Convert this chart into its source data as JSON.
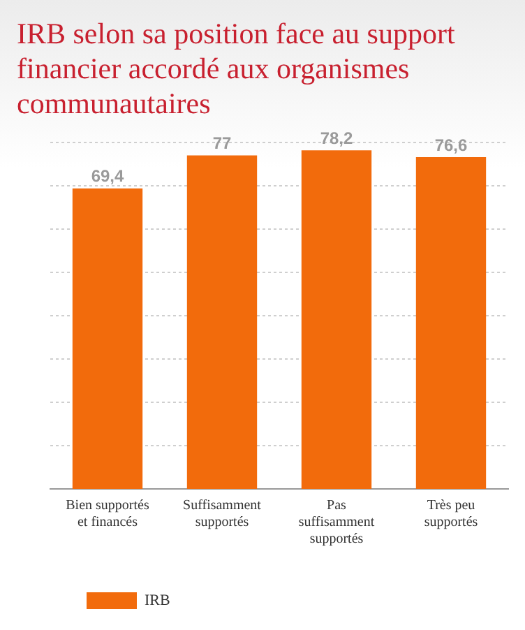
{
  "chart_data": {
    "type": "bar",
    "title": "IRB selon sa position face au support financier accordé aux organismes communautaires",
    "categories": [
      "Bien supportés et financés",
      "Suffisamment supportés",
      "Pas suffisamment supportés",
      "Très peu supportés"
    ],
    "series": [
      {
        "name": "IRB",
        "color": "#f26b0c",
        "values": [
          69.4,
          77,
          78.2,
          76.6
        ],
        "value_labels": [
          "69,4",
          "77",
          "78,2",
          "76,6"
        ]
      }
    ],
    "tick_labels": "x",
    "grid": "y",
    "legend": "bottom left"
  }
}
